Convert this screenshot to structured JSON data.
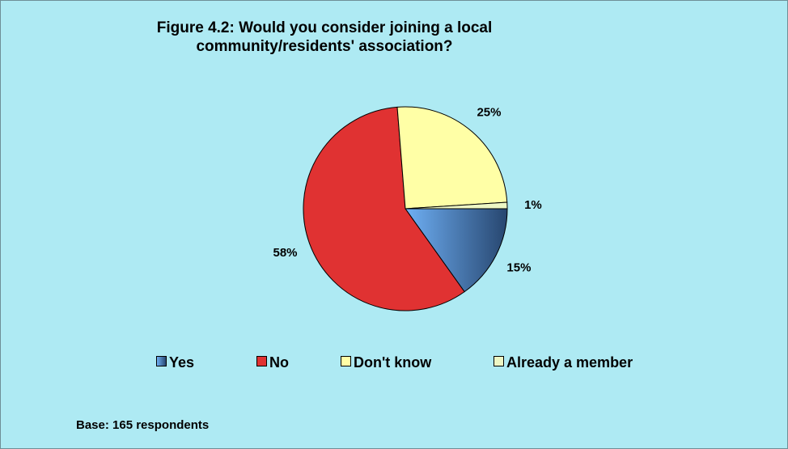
{
  "chart_data": {
    "type": "pie",
    "title_lines": [
      "Figure 4.2:  Would you consider joining a local",
      "community/residents' association?"
    ],
    "slices": [
      {
        "label": "Yes",
        "value": 15,
        "display": "15%",
        "color": "#4a85c9"
      },
      {
        "label": "No",
        "value": 58,
        "display": "58%",
        "color": "#e03232"
      },
      {
        "label": "Don't know",
        "value": 25,
        "display": "25%",
        "color": "#ffffa6"
      },
      {
        "label": "Already a member",
        "value": 1,
        "display": "1%",
        "color": "#eef7c4"
      }
    ],
    "legend_placement": "bottom",
    "note": "Base:  165 respondents"
  },
  "colors": {
    "background": "#aeeaf3",
    "outline": "#000000"
  }
}
